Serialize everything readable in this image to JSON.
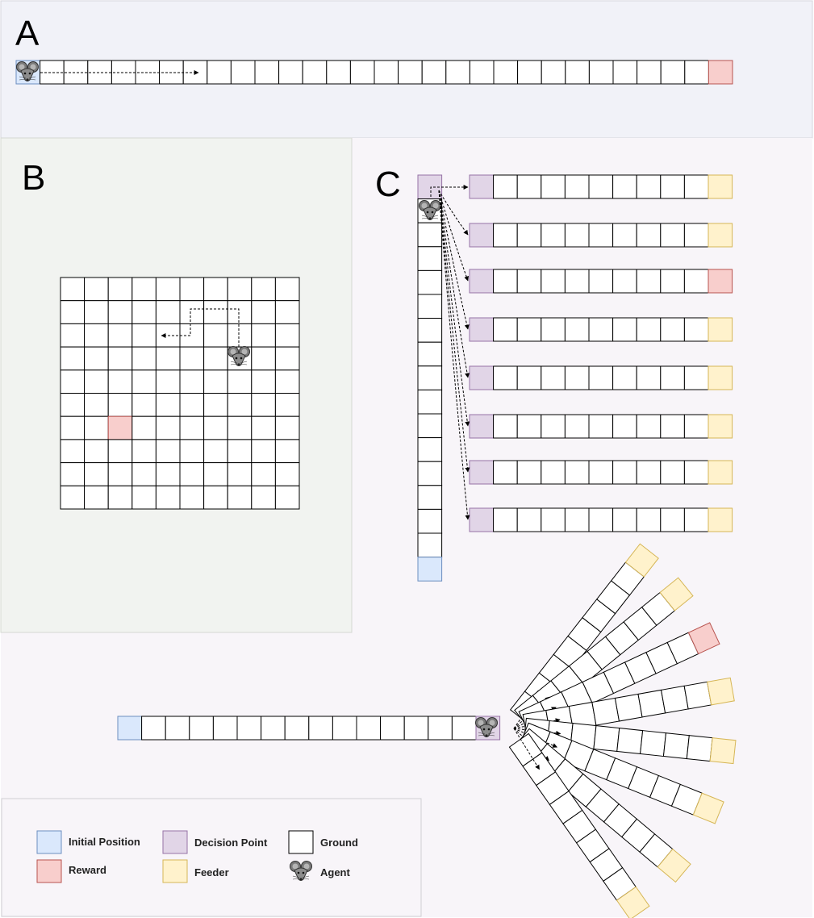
{
  "panels": {
    "a": {
      "label": "A"
    },
    "b": {
      "label": "B"
    },
    "c": {
      "label": "C"
    }
  },
  "legend": {
    "initial_position": "Initial Position",
    "reward": "Reward",
    "decision_point": "Decision Point",
    "feeder": "Feeder",
    "ground": "Ground",
    "agent": "Agent"
  },
  "colors": {
    "initial_fill": "#dae8fc",
    "initial_stroke": "#6c8ebf",
    "reward_fill": "#f8cecc",
    "reward_stroke": "#b85450",
    "decision_fill": "#e1d5e7",
    "decision_stroke": "#9673a6",
    "feeder_fill": "#fff2cc",
    "feeder_stroke": "#d6b656",
    "ground_fill": "#ffffff",
    "ground_stroke": "#000000",
    "panel_a_bg": "#f1f2f8",
    "panel_b_bg": "#f1f3f0",
    "panel_c_bg": "#f8f5f9"
  },
  "icons": {
    "agent": "mouse-agent-icon"
  }
}
